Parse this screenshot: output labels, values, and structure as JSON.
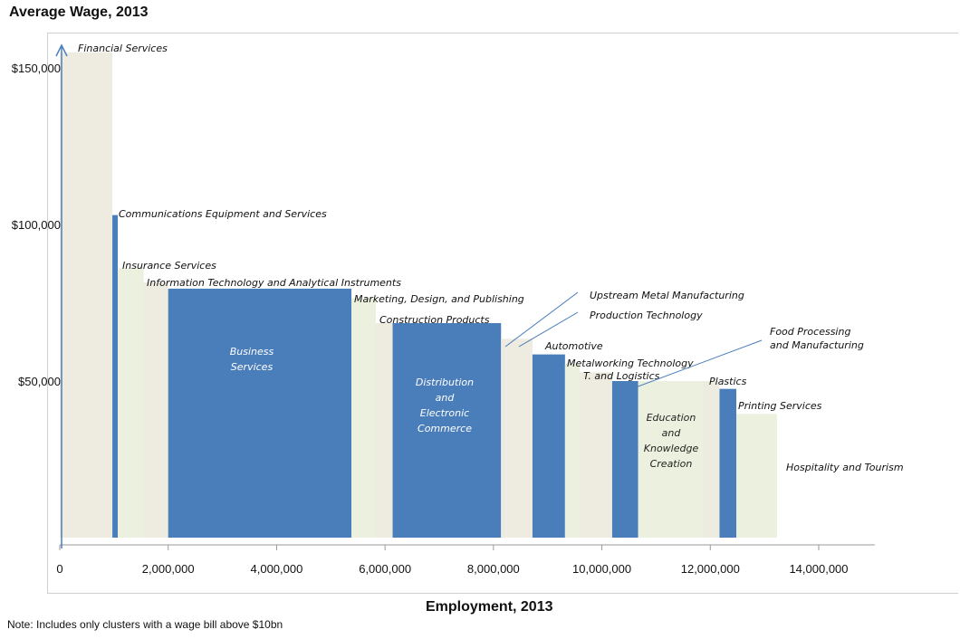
{
  "chart_data": {
    "type": "bar",
    "variable_width": true,
    "title": "Average Wage, 2013",
    "xlabel": "Employment, 2013",
    "ylabel": "",
    "note": "Note: Includes only clusters with a wage bill above $10bn",
    "xlim": [
      0,
      15000000
    ],
    "ylim": [
      0,
      160000
    ],
    "xticks": [
      0,
      2000000,
      4000000,
      6000000,
      8000000,
      10000000,
      12000000,
      14000000
    ],
    "xtick_labels": [
      "0",
      "2,000,000",
      "4,000,000",
      "6,000,000",
      "8,000,000",
      "10,000,000",
      "12,000,000",
      "14,000,000"
    ],
    "yticks": [
      50000,
      100000,
      150000
    ],
    "ytick_labels": [
      "$50,000",
      "$100,000",
      "$150,000"
    ],
    "colors": {
      "highlight": "#4a7ebb",
      "shade_a": "#eeebe1",
      "shade_b": "#ebf1de",
      "axis": "#4a7ebb",
      "grid": "#cfcfcf"
    },
    "clusters": [
      {
        "name": "Financial Services",
        "employment": 970000,
        "wage": 155000,
        "fill": "shade_a",
        "label_lines": [
          "Financial Services"
        ]
      },
      {
        "name": "Communications Equipment and Services",
        "employment": 100000,
        "wage": 103000,
        "fill": "highlight",
        "label_lines": [
          "Communications Equipment and Services"
        ]
      },
      {
        "name": "Insurance Services",
        "employment": 480000,
        "wage": 86000,
        "fill": "shade_b",
        "label_lines": [
          "Insurance Services"
        ]
      },
      {
        "name": "Information Technology and Analytical Instruments",
        "employment": 450000,
        "wage": 81500,
        "fill": "shade_a",
        "label_lines": [
          "Information Technology and Analytical Instruments"
        ]
      },
      {
        "name": "Business Services",
        "employment": 3380000,
        "wage": 79500,
        "fill": "highlight",
        "label_lines": [
          "Business",
          "Services"
        ],
        "inside": true
      },
      {
        "name": "Marketing, Design, and Publishing",
        "employment": 450000,
        "wage": 76500,
        "fill": "shade_b",
        "label_lines": [
          "Marketing, Design, and Publishing"
        ]
      },
      {
        "name": "Construction Products",
        "employment": 310000,
        "wage": 68500,
        "fill": "shade_a",
        "label_lines": [
          "Construction Products"
        ]
      },
      {
        "name": "Distribution and Electronic Commerce",
        "employment": 2000000,
        "wage": 68500,
        "fill": "highlight",
        "label_lines": [
          "Distribution",
          "and",
          "Electronic",
          "Commerce"
        ],
        "inside": true
      },
      {
        "name": "Upstream Metal Manufacturing",
        "employment": 100000,
        "wage": 63500,
        "fill": "shade_a",
        "label_lines": [
          "Upstream Metal Manufacturing"
        ]
      },
      {
        "name": "Production Technology",
        "employment": 480000,
        "wage": 63500,
        "fill": "shade_a",
        "label_lines": [
          "Production Technology"
        ]
      },
      {
        "name": "Automotive",
        "employment": 600000,
        "wage": 58500,
        "fill": "highlight",
        "label_lines": [
          "Automotive"
        ]
      },
      {
        "name": "Metalworking Technology",
        "employment": 270000,
        "wage": 55500,
        "fill": "shade_b",
        "label_lines": [
          "Metalworking Technology"
        ]
      },
      {
        "name": "T. and Logistics",
        "employment": 600000,
        "wage": 52800,
        "fill": "shade_a",
        "label_lines": [
          "T. and Logistics"
        ]
      },
      {
        "name": "Food Processing and Manufacturing",
        "employment": 480000,
        "wage": 50000,
        "fill": "highlight",
        "label_lines": [
          "Food Processing",
          "and Manufacturing"
        ]
      },
      {
        "name": "Education and Knowledge Creation",
        "employment": 1200000,
        "wage": 50000,
        "fill": "shade_b",
        "label_lines": [
          "Education",
          "and",
          "Knowledge",
          "Creation"
        ],
        "inside": true
      },
      {
        "name": "Plastics",
        "employment": 300000,
        "wage": 50000,
        "fill": "shade_a",
        "label_lines": [
          "Plastics"
        ]
      },
      {
        "name": "Printing Services",
        "employment": 310000,
        "wage": 47500,
        "fill": "highlight",
        "label_lines": [
          "Printing Services"
        ]
      },
      {
        "name": "Hospitality and Tourism",
        "employment": 750000,
        "wage": 39500,
        "fill": "shade_b",
        "label_lines": [
          "Hospitality and Tourism"
        ]
      }
    ]
  }
}
